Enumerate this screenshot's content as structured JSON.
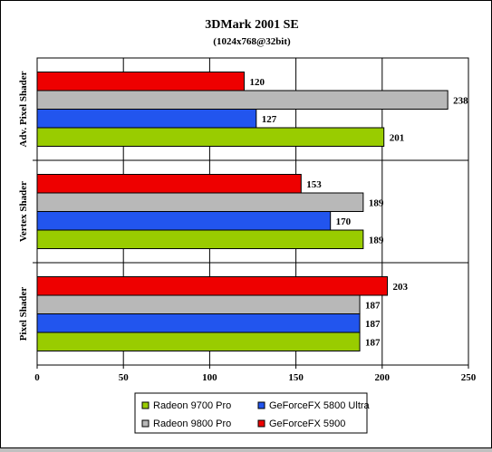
{
  "chart_data": {
    "type": "bar",
    "orientation": "horizontal",
    "title": "3DMark 2001 SE",
    "subtitle": "(1024x768@32bit)",
    "categories": [
      "Adv. Pixel Shader",
      "Vertex Shader",
      "Pixel Shader"
    ],
    "series": [
      {
        "name": "GeForceFX 5900",
        "color": "#ee0000",
        "values": [
          120,
          153,
          203
        ]
      },
      {
        "name": "Radeon 9800 Pro",
        "color": "#b8b8b8",
        "values": [
          238,
          189,
          187
        ]
      },
      {
        "name": "GeForceFX 5800 Ultra",
        "color": "#2255ee",
        "values": [
          127,
          170,
          187
        ]
      },
      {
        "name": "Radeon 9700 Pro",
        "color": "#99cc00",
        "values": [
          201,
          189,
          187
        ]
      }
    ],
    "xlim": [
      0,
      250
    ],
    "xticks": [
      "0",
      "50",
      "100",
      "150",
      "200",
      "250"
    ],
    "grid": true,
    "legend": {
      "placement": "bottom",
      "order": [
        "Radeon 9700 Pro",
        "GeForceFX 5800 Ultra",
        "Radeon 9800 Pro",
        "GeForceFX 5900"
      ]
    },
    "data_labels": true
  }
}
